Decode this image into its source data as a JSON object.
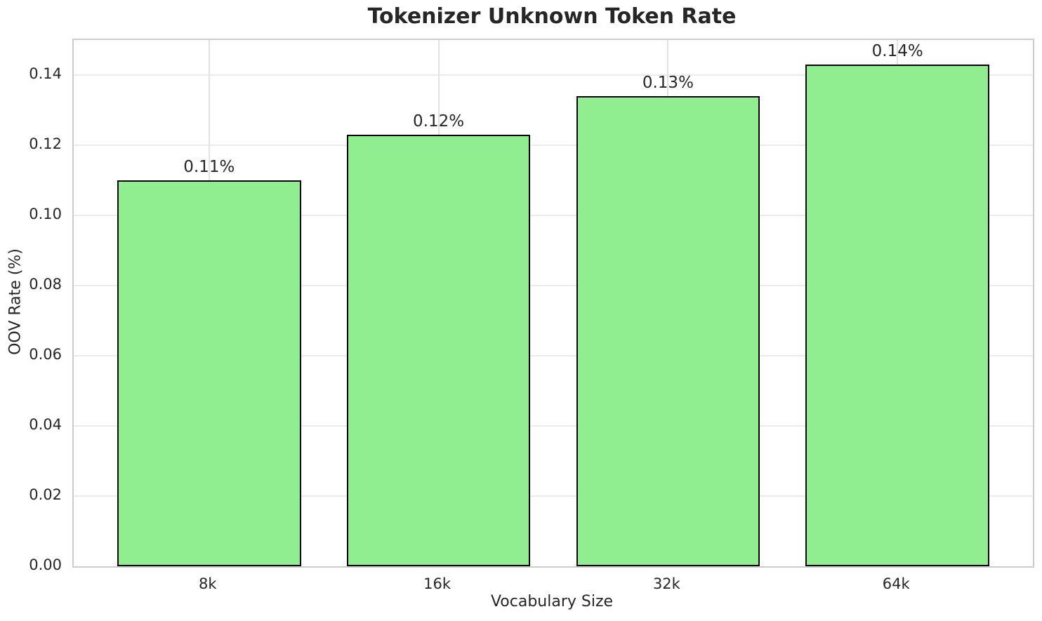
{
  "chart_data": {
    "type": "bar",
    "title": "Tokenizer Unknown Token Rate",
    "xlabel": "Vocabulary Size",
    "ylabel": "OOV Rate (%)",
    "categories": [
      "8k",
      "16k",
      "32k",
      "64k"
    ],
    "values": [
      0.11,
      0.123,
      0.134,
      0.143
    ],
    "bar_labels": [
      "0.11%",
      "0.12%",
      "0.13%",
      "0.14%"
    ],
    "ylim": [
      0,
      0.15
    ],
    "xlim": [
      -0.59,
      3.59
    ],
    "bar_width_units": 0.8,
    "yticks": [
      0.0,
      0.02,
      0.04,
      0.06,
      0.08,
      0.1,
      0.12,
      0.14
    ],
    "ytick_labels": [
      "0.00",
      "0.02",
      "0.04",
      "0.06",
      "0.08",
      "0.10",
      "0.12",
      "0.14"
    ],
    "grid": true,
    "legend_position": "none",
    "colors": {
      "bar_fill": "#90EE90",
      "bar_edge": "#000000",
      "grid_horizontal": "#ebebeb",
      "grid_vertical": "#e2e2e2",
      "spine": "#cccccc",
      "text": "#262626",
      "background": "#ffffff"
    }
  }
}
